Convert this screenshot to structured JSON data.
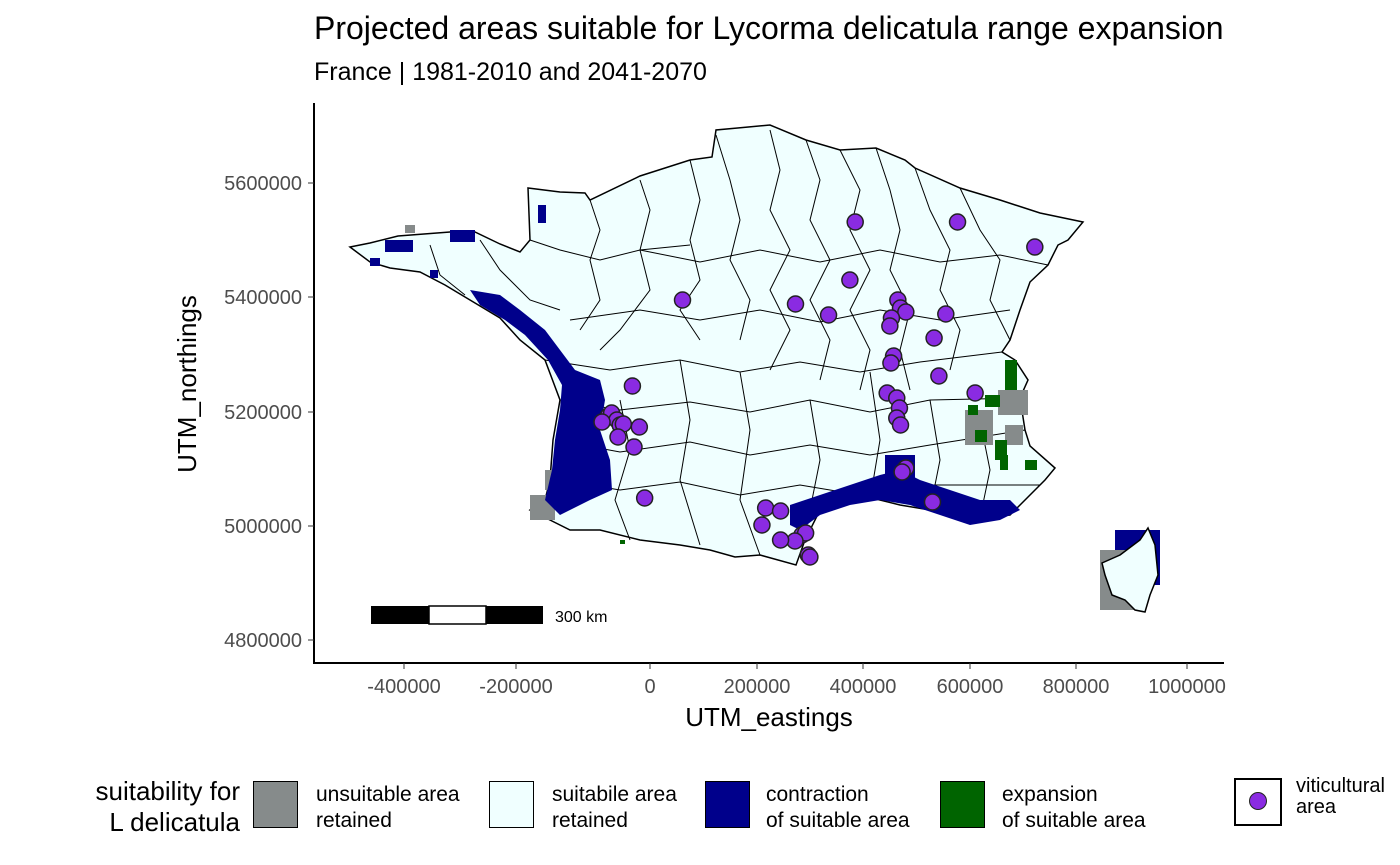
{
  "title": "Projected areas suitable for Lycorma delicatula range expansion",
  "subtitle": "France | 1981-2010 and 2041-2070",
  "axes": {
    "x_title": "UTM_eastings",
    "y_title": "UTM_northings",
    "x_ticks": [
      "-400000",
      "-200000",
      "0",
      "200000",
      "400000",
      "600000",
      "800000",
      "1000000"
    ],
    "y_ticks": [
      "4800000",
      "5000000",
      "5200000",
      "5400000",
      "5600000"
    ]
  },
  "scale_bar": {
    "label": "300 km"
  },
  "colors": {
    "unsuitable_retained": "#868b8b",
    "suitable_retained": "#f0ffff",
    "contraction": "#00008b",
    "expansion": "#006400",
    "viticultural": "#8a2be2"
  },
  "legend": {
    "title": "suitability for\nL delicatula",
    "items": [
      {
        "label": "unsuitable area\nretained",
        "color": "#868b8b"
      },
      {
        "label": "suitabile area\nretained",
        "color": "#f0ffff"
      },
      {
        "label": "contraction\nof suitable area",
        "color": "#00008b"
      },
      {
        "label": "expansion\nof suitable area",
        "color": "#006400"
      }
    ],
    "points_label": "viticultural\narea"
  },
  "viticultural_points": [
    [
      385,
      222
    ],
    [
      577,
      222
    ],
    [
      722,
      247
    ],
    [
      375,
      280
    ],
    [
      555,
      314
    ],
    [
      61,
      300
    ],
    [
      273,
      304
    ],
    [
      335,
      315
    ],
    [
      465,
      300
    ],
    [
      470,
      308
    ],
    [
      480,
      312
    ],
    [
      453,
      318
    ],
    [
      450,
      326
    ],
    [
      533,
      338
    ],
    [
      457,
      356
    ],
    [
      452,
      363
    ],
    [
      -33,
      386
    ],
    [
      542,
      376
    ],
    [
      610,
      393
    ],
    [
      445,
      393
    ],
    [
      463,
      398
    ],
    [
      468,
      408
    ],
    [
      -78,
      416
    ],
    [
      -72,
      413
    ],
    [
      -62,
      420
    ],
    [
      -90,
      422
    ],
    [
      -56,
      425
    ],
    [
      -50,
      424
    ],
    [
      -60,
      437
    ],
    [
      -20,
      427
    ],
    [
      -30,
      447
    ],
    [
      463,
      418
    ],
    [
      470,
      425
    ],
    [
      480,
      468
    ],
    [
      473,
      472
    ],
    [
      -10,
      498
    ],
    [
      217,
      508
    ],
    [
      245,
      511
    ],
    [
      210,
      525
    ],
    [
      530,
      502
    ],
    [
      285,
      535
    ],
    [
      292,
      533
    ],
    [
      272,
      541
    ],
    [
      245,
      540
    ],
    [
      297,
      555
    ],
    [
      300,
      557
    ]
  ]
}
